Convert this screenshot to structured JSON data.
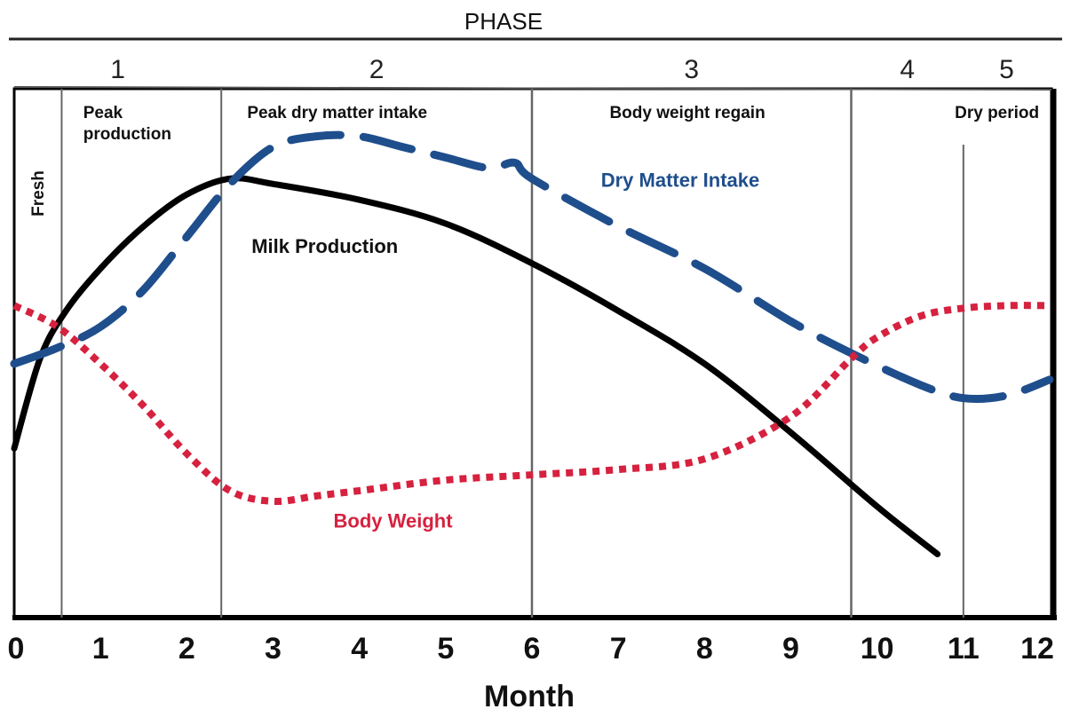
{
  "chart_data": {
    "type": "line",
    "title": "",
    "xlabel": "Month",
    "ylabel": "",
    "xlim": [
      0,
      12
    ],
    "ylim": [
      0,
      100
    ],
    "x_ticks": [
      "0",
      "1",
      "2",
      "3",
      "4",
      "5",
      "6",
      "7",
      "8",
      "9",
      "10",
      "11",
      "12"
    ],
    "grid": false,
    "phase_header": "PHASE",
    "phases": [
      {
        "label": "1",
        "start": 0,
        "end": 2.4
      },
      {
        "label": "2",
        "start": 2.4,
        "end": 6
      },
      {
        "label": "3",
        "start": 6,
        "end": 9.7
      },
      {
        "label": "4",
        "start": 9.7,
        "end": 11
      },
      {
        "label": "5",
        "start": 11,
        "end": 12
      }
    ],
    "stage_boundaries": [
      0.55,
      2.4,
      6,
      9.7,
      11
    ],
    "stage_labels": [
      {
        "text": "Fresh",
        "at": 0.27,
        "vertical": true
      },
      {
        "text": "Peak\nproduction",
        "at": 0.8
      },
      {
        "text": "Peak dry matter intake",
        "at": 2.7
      },
      {
        "text": "Body weight regain",
        "at": 6.9
      },
      {
        "text": "Dry period",
        "at": 10.9
      }
    ],
    "series": [
      {
        "name": "Milk Production",
        "color": "#000000",
        "style": "solid",
        "x": [
          0,
          0.3,
          0.6,
          1,
          1.5,
          2,
          2.5,
          3,
          4,
          5,
          6,
          7,
          8,
          9,
          10,
          10.7
        ],
        "y": [
          32,
          49,
          58,
          66,
          74,
          80,
          83,
          82,
          79,
          74.5,
          67,
          58,
          48,
          35,
          21,
          12
        ]
      },
      {
        "name": "Dry Matter Intake",
        "color": "#1f4e8c",
        "style": "dashed",
        "x": [
          0,
          0.5,
          1,
          1.5,
          2,
          2.5,
          3,
          3.5,
          4,
          4.5,
          5,
          5.5,
          5.8,
          6,
          7,
          8,
          9,
          9.7,
          10.5,
          11,
          11.5,
          12
        ],
        "y": [
          48,
          51,
          55,
          62,
          72,
          82,
          89,
          91,
          91,
          89,
          87,
          85,
          86,
          83,
          74,
          66,
          56,
          50,
          44,
          41.5,
          42,
          45
        ]
      },
      {
        "name": "Body Weight",
        "color": "#d6213f",
        "style": "dotted",
        "x": [
          0,
          0.5,
          1,
          1.5,
          2,
          2.5,
          3,
          3.5,
          4,
          5,
          6,
          7,
          8,
          9,
          9.7,
          10,
          10.5,
          11,
          11.5,
          12
        ],
        "y": [
          59,
          55,
          48,
          40,
          31,
          24,
          22,
          23,
          24,
          26,
          27,
          28,
          30,
          38,
          49,
          53,
          57,
          58.5,
          59,
          59
        ]
      }
    ],
    "series_labels": [
      {
        "text": "Milk Production",
        "color": "#111111",
        "x": 2.75,
        "y": 69
      },
      {
        "text": "Dry Matter Intake",
        "color": "#1f4e8c",
        "x": 6.8,
        "y": 81.5
      },
      {
        "text": "Body Weight",
        "color": "#d6213f",
        "x": 3.7,
        "y": 17
      }
    ]
  }
}
